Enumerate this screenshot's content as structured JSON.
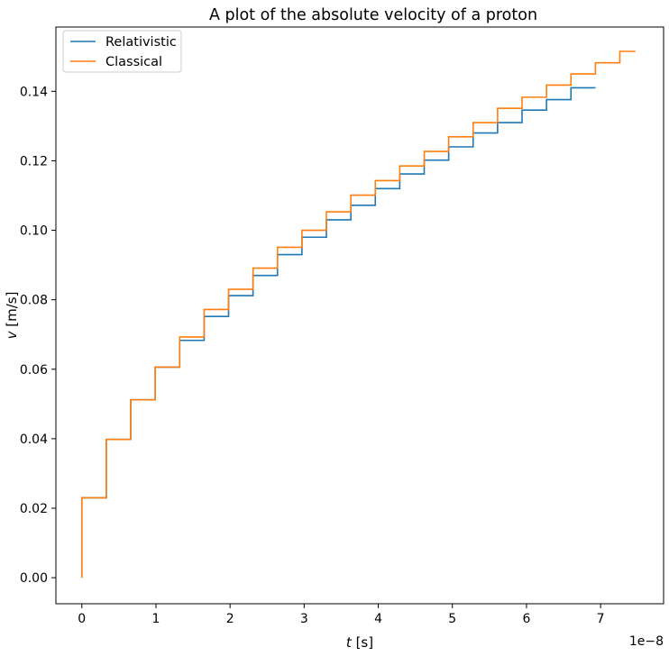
{
  "chart_data": {
    "type": "line",
    "title": "A plot of the absolute velocity of a proton",
    "xlabel_var": "t",
    "xlabel_unit": " [s]",
    "ylabel_var": "v",
    "ylabel_unit": " [m/s]",
    "x_offset_text": "1e−8",
    "xlim": [
      -0.35,
      7.85
    ],
    "ylim": [
      -0.0075,
      0.1585
    ],
    "xticks": [
      0,
      1,
      2,
      3,
      4,
      5,
      6,
      7
    ],
    "xtick_labels": [
      "0",
      "1",
      "2",
      "3",
      "4",
      "5",
      "6",
      "7"
    ],
    "yticks": [
      0.0,
      0.02,
      0.04,
      0.06,
      0.08,
      0.1,
      0.12,
      0.14
    ],
    "ytick_labels": [
      "0.00",
      "0.02",
      "0.04",
      "0.06",
      "0.08",
      "0.10",
      "0.12",
      "0.14"
    ],
    "grid": false,
    "legend_position": "top-left",
    "series": [
      {
        "name": "Relativistic",
        "color": "#1f77b4",
        "drawstyle": "steps-post",
        "x": [
          0,
          0,
          0.33,
          0.66,
          0.99,
          1.32,
          1.65,
          1.98,
          2.31,
          2.64,
          2.97,
          3.3,
          3.63,
          3.96,
          4.29,
          4.62,
          4.95,
          5.28,
          5.61,
          5.94,
          6.27,
          6.6,
          6.93
        ],
        "y": [
          0.0,
          0.023,
          0.0398,
          0.0512,
          0.0606,
          0.0683,
          0.0752,
          0.0812,
          0.087,
          0.093,
          0.098,
          0.103,
          0.1072,
          0.112,
          0.1162,
          0.1202,
          0.124,
          0.128,
          0.131,
          0.1346,
          0.1376,
          0.141,
          0.141
        ]
      },
      {
        "name": "Classical",
        "color": "#ff7f0e",
        "drawstyle": "steps-post",
        "x": [
          0,
          0,
          0.33,
          0.66,
          0.99,
          1.32,
          1.65,
          1.98,
          2.31,
          2.64,
          2.97,
          3.3,
          3.63,
          3.96,
          4.29,
          4.62,
          4.95,
          5.28,
          5.61,
          5.94,
          6.27,
          6.6,
          6.93,
          7.26,
          7.47
        ],
        "y": [
          0.0,
          0.023,
          0.0398,
          0.0512,
          0.0606,
          0.0693,
          0.0772,
          0.083,
          0.0891,
          0.0951,
          0.1,
          0.1053,
          0.1101,
          0.1143,
          0.1185,
          0.1227,
          0.1269,
          0.131,
          0.1351,
          0.1383,
          0.1418,
          0.145,
          0.1482,
          0.1515,
          0.1515
        ]
      }
    ]
  }
}
